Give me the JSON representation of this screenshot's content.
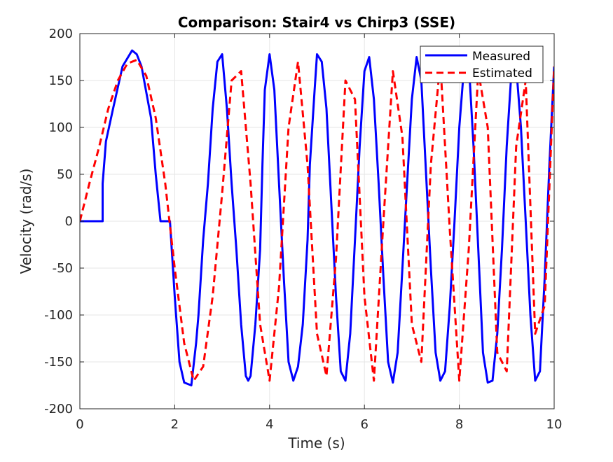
{
  "chart_data": {
    "type": "line",
    "title": "Comparison: Stair4 vs Chirp3 (SSE)",
    "xlabel": "Time (s)",
    "ylabel": "Velocity (rad/s)",
    "xlim": [
      0,
      10
    ],
    "ylim": [
      -200,
      200
    ],
    "xticks": [
      0,
      2,
      4,
      6,
      8,
      10
    ],
    "xtick_labels": [
      "0",
      "2",
      "4",
      "6",
      "8",
      "10"
    ],
    "yticks": [
      200,
      150,
      100,
      50,
      0,
      -50,
      -100,
      -150,
      -200
    ],
    "ytick_labels": [
      "200",
      "150",
      "100",
      "50",
      "0",
      "-50",
      "-100",
      "-150",
      "-200"
    ],
    "grid": true,
    "legend_position": "top-right",
    "series": [
      {
        "name": "Measured",
        "color": "#0000FF",
        "style": "solid",
        "x": [
          0.0,
          0.48,
          0.48,
          0.55,
          0.7,
          0.9,
          1.1,
          1.2,
          1.3,
          1.5,
          1.6,
          1.7,
          1.8,
          1.9,
          2.0,
          2.1,
          2.2,
          2.35,
          2.45,
          2.5,
          2.6,
          2.7,
          2.8,
          2.9,
          3.0,
          3.1,
          3.2,
          3.3,
          3.4,
          3.5,
          3.55,
          3.6,
          3.7,
          3.8,
          3.85,
          3.9,
          4.0,
          4.1,
          4.2,
          4.3,
          4.4,
          4.5,
          4.6,
          4.7,
          4.8,
          4.85,
          4.95,
          5.0,
          5.1,
          5.2,
          5.3,
          5.4,
          5.5,
          5.6,
          5.7,
          5.8,
          5.9,
          6.0,
          6.1,
          6.2,
          6.3,
          6.4,
          6.5,
          6.6,
          6.7,
          6.8,
          6.9,
          7.0,
          7.1,
          7.2,
          7.3,
          7.4,
          7.5,
          7.6,
          7.7,
          7.8,
          7.9,
          8.0,
          8.1,
          8.2,
          8.3,
          8.4,
          8.5,
          8.6,
          8.7,
          8.8,
          8.9,
          9.0,
          9.1,
          9.2,
          9.3,
          9.4,
          9.5,
          9.6,
          9.7,
          9.8,
          9.9,
          10.0
        ],
        "y": [
          0,
          0,
          40,
          85,
          120,
          165,
          182,
          178,
          165,
          110,
          50,
          0,
          0,
          0,
          -80,
          -150,
          -172,
          -175,
          -130,
          -100,
          -20,
          40,
          120,
          170,
          178,
          120,
          40,
          -30,
          -110,
          -165,
          -170,
          -165,
          -110,
          -30,
          60,
          140,
          178,
          140,
          40,
          -60,
          -150,
          -170,
          -155,
          -110,
          -20,
          60,
          140,
          178,
          170,
          120,
          20,
          -80,
          -160,
          -170,
          -120,
          -20,
          80,
          160,
          175,
          130,
          40,
          -60,
          -150,
          -172,
          -140,
          -50,
          40,
          130,
          175,
          150,
          50,
          -50,
          -140,
          -170,
          -160,
          -90,
          0,
          100,
          165,
          170,
          80,
          -30,
          -140,
          -172,
          -170,
          -120,
          -30,
          80,
          160,
          165,
          100,
          0,
          -100,
          -170,
          -160,
          -60,
          60,
          165
        ],
        "note_ignored": ""
      },
      {
        "name": "Estimated",
        "color": "#FF0000",
        "style": "dashed",
        "x": [
          0.0,
          0.2,
          0.4,
          0.6,
          0.8,
          1.0,
          1.2,
          1.4,
          1.6,
          1.8,
          2.0,
          2.2,
          2.4,
          2.6,
          2.8,
          3.0,
          3.2,
          3.4,
          3.6,
          3.8,
          4.0,
          4.2,
          4.4,
          4.6,
          4.8,
          5.0,
          5.2,
          5.4,
          5.6,
          5.8,
          6.0,
          6.2,
          6.4,
          6.6,
          6.8,
          7.0,
          7.2,
          7.4,
          7.6,
          7.8,
          8.0,
          8.2,
          8.4,
          8.6,
          8.8,
          9.0,
          9.2,
          9.4,
          9.6,
          9.8,
          10.0
        ],
        "y": [
          0,
          40,
          78,
          120,
          150,
          168,
          172,
          155,
          110,
          40,
          -50,
          -130,
          -170,
          -155,
          -80,
          30,
          150,
          160,
          40,
          -110,
          -170,
          -70,
          100,
          170,
          60,
          -120,
          -165,
          -40,
          150,
          130,
          -80,
          -170,
          0,
          160,
          90,
          -110,
          -150,
          60,
          170,
          -10,
          -170,
          -30,
          160,
          100,
          -140,
          -160,
          80,
          150,
          -120,
          -90,
          165
        ]
      }
    ]
  }
}
